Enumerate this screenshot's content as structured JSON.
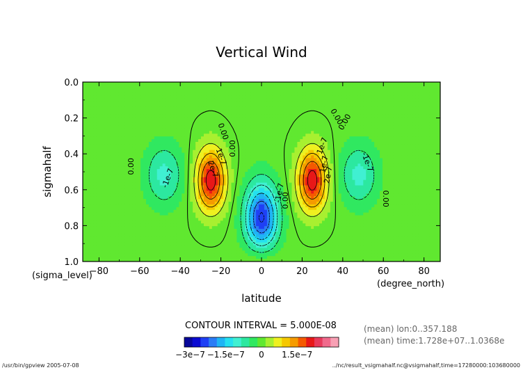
{
  "chart_data": {
    "type": "heatmap",
    "title": "Vertical Wind",
    "xlabel": "latitude",
    "ylabel": "sigmahalf",
    "x_ticks": [
      "−80",
      "−60",
      "−40",
      "−20",
      "0",
      "20",
      "40",
      "60",
      "80"
    ],
    "x_tick_values": [
      -80,
      -60,
      -40,
      -20,
      0,
      20,
      40,
      60,
      80
    ],
    "y_ticks": [
      "0.0",
      "0.2",
      "0.4",
      "0.6",
      "0.8",
      "1.0"
    ],
    "y_tick_values": [
      0.0,
      0.2,
      0.4,
      0.6,
      0.8,
      1.0
    ],
    "xlim": [
      -88,
      88
    ],
    "ylim": [
      1.0,
      0.0
    ],
    "x_unit_label": "(degree_north)",
    "y_unit_label": "(sigma_level)",
    "contour_interval_text": "CONTOUR INTERVAL = 5.000E-08",
    "contour_interval": 5e-08,
    "features": [
      {
        "lat": -48,
        "sigma": 0.52,
        "value": -1e-07
      },
      {
        "lat": -25,
        "sigma": 0.55,
        "value": 2.3e-07
      },
      {
        "lat": 0,
        "sigma": 0.78,
        "value": -3e-07
      },
      {
        "lat": 25,
        "sigma": 0.55,
        "value": 2.3e-07
      },
      {
        "lat": 48,
        "sigma": 0.52,
        "value": -1e-07
      }
    ],
    "contour_labels": [
      {
        "text": "0.00",
        "lat": -63,
        "sigma": 0.47,
        "rotate": -90
      },
      {
        "text": "-1e-7",
        "lat": -45,
        "sigma": 0.54,
        "rotate": -70
      },
      {
        "text": "1e-7",
        "lat": -21,
        "sigma": 0.42,
        "rotate": 70
      },
      {
        "text": "2e-7",
        "lat": -25,
        "sigma": 0.49,
        "rotate": 70
      },
      {
        "text": "0.00",
        "lat": -13,
        "sigma": 0.37,
        "rotate": -90
      },
      {
        "text": "0.00",
        "lat": -20,
        "sigma": 0.28,
        "rotate": 70
      },
      {
        "text": "-1e-7",
        "lat": 10,
        "sigma": 0.62,
        "rotate": -80
      },
      {
        "text": "0.00",
        "lat": 13,
        "sigma": 0.66,
        "rotate": -90
      },
      {
        "text": "2e-7",
        "lat": 34,
        "sigma": 0.52,
        "rotate": -80
      },
      {
        "text": "1e-7",
        "lat": 32,
        "sigma": 0.46,
        "rotate": -80
      },
      {
        "text": "1e-7",
        "lat": 31,
        "sigma": 0.36,
        "rotate": -70
      },
      {
        "text": "0.00",
        "lat": 36,
        "sigma": 0.2,
        "rotate": 60
      },
      {
        "text": "-1e-7",
        "lat": 51,
        "sigma": 0.45,
        "rotate": 70
      },
      {
        "text": "0.00",
        "lat": 42,
        "sigma": 0.23,
        "rotate": -60
      },
      {
        "text": "0.00",
        "lat": 60,
        "sigma": 0.65,
        "rotate": 90
      }
    ],
    "colorbar": {
      "tick_labels": [
        "−3e−7",
        "−1.5e−7",
        "0",
        "1.5e−7"
      ],
      "tick_values": [
        -3e-07,
        -1.5e-07,
        0,
        1.5e-07
      ],
      "min": -3.25e-07,
      "max": 3.25e-07,
      "colors": [
        "#07079a",
        "#0b0bd2",
        "#1f40f5",
        "#2a7cf5",
        "#1fb4f5",
        "#25e0f0",
        "#40f0d2",
        "#2ce8a0",
        "#30e860",
        "#60e830",
        "#a8f030",
        "#eff020",
        "#f5c800",
        "#f59b00",
        "#f55a00",
        "#e81818",
        "#e83a5c",
        "#f06a8c",
        "#f8a0b4"
      ]
    },
    "annotations": [
      "(mean) lon:0..357.188",
      "(mean) time:1.728e+07..1.0368e"
    ],
    "footer_left": "/usr/bin/gpview  2005-07-08",
    "footer_right": "../nc/result_vsigmahalf.nc@vsigmahalf,time=17280000:103680000"
  }
}
